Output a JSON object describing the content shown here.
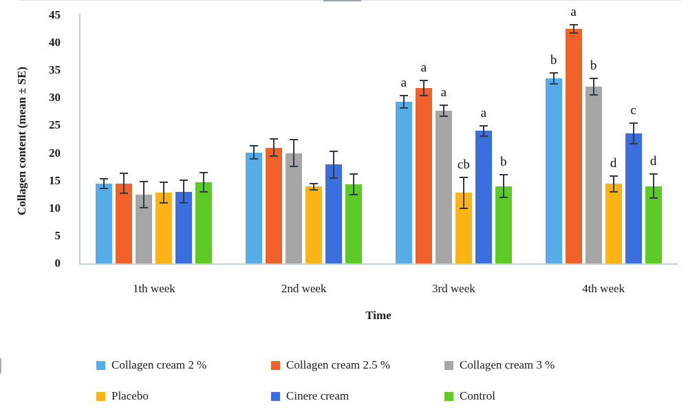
{
  "chart_data": {
    "type": "bar",
    "title": "",
    "categories": [
      "1th week",
      "2nd week",
      "3rd week",
      "4th week"
    ],
    "series": [
      {
        "name": "Collagen cream 2 %",
        "color": "#55ACE8",
        "values": [
          14.5,
          20.1,
          29.3,
          33.5
        ],
        "se": [
          1.0,
          1.3,
          1.2,
          1.1
        ],
        "letters": [
          "",
          "",
          "a",
          "b"
        ]
      },
      {
        "name": "Collagen cream 2.5 %",
        "color": "#F1612A",
        "values": [
          14.5,
          21.0,
          31.8,
          42.5
        ],
        "se": [
          1.9,
          1.7,
          1.5,
          0.9
        ],
        "letters": [
          "",
          "",
          "a",
          "a"
        ]
      },
      {
        "name": "Collagen cream 3 %",
        "color": "#A6A6A6",
        "values": [
          12.5,
          20.0,
          27.7,
          32.0
        ],
        "se": [
          2.5,
          2.6,
          1.1,
          1.6
        ],
        "letters": [
          "",
          "",
          "a",
          "b"
        ]
      },
      {
        "name": "Placebo",
        "color": "#FBB316",
        "values": [
          12.8,
          13.9,
          12.8,
          14.4
        ],
        "se": [
          2.0,
          0.7,
          2.9,
          1.5
        ],
        "letters": [
          "",
          "",
          "cb",
          "d"
        ]
      },
      {
        "name": "Cinere cream",
        "color": "#3B6FDE",
        "values": [
          13.0,
          17.9,
          24.0,
          23.6
        ],
        "se": [
          2.2,
          2.6,
          1.1,
          2.0
        ],
        "letters": [
          "",
          "",
          "a",
          "c"
        ]
      },
      {
        "name": "Control",
        "color": "#5CCB26",
        "values": [
          14.7,
          14.3,
          14.0,
          14.0
        ],
        "se": [
          1.9,
          2.0,
          2.2,
          2.3
        ],
        "letters": [
          "",
          "",
          "b",
          "d"
        ]
      }
    ],
    "xlabel": "Time",
    "ylabel": "Collagen content (mean ± SE)",
    "ylim": [
      0,
      45
    ],
    "ytick_step": 5,
    "ytick_labels": [
      "0",
      "5",
      "10",
      "15",
      "20",
      "25",
      "30",
      "35",
      "40",
      "45"
    ],
    "grid": false,
    "legend_position": "bottom",
    "colors": {
      "error_bar": "#2E3A46",
      "axis_line": "#C7CFD4",
      "text": "#1B1B1B",
      "background": "#FFFFFF"
    }
  }
}
